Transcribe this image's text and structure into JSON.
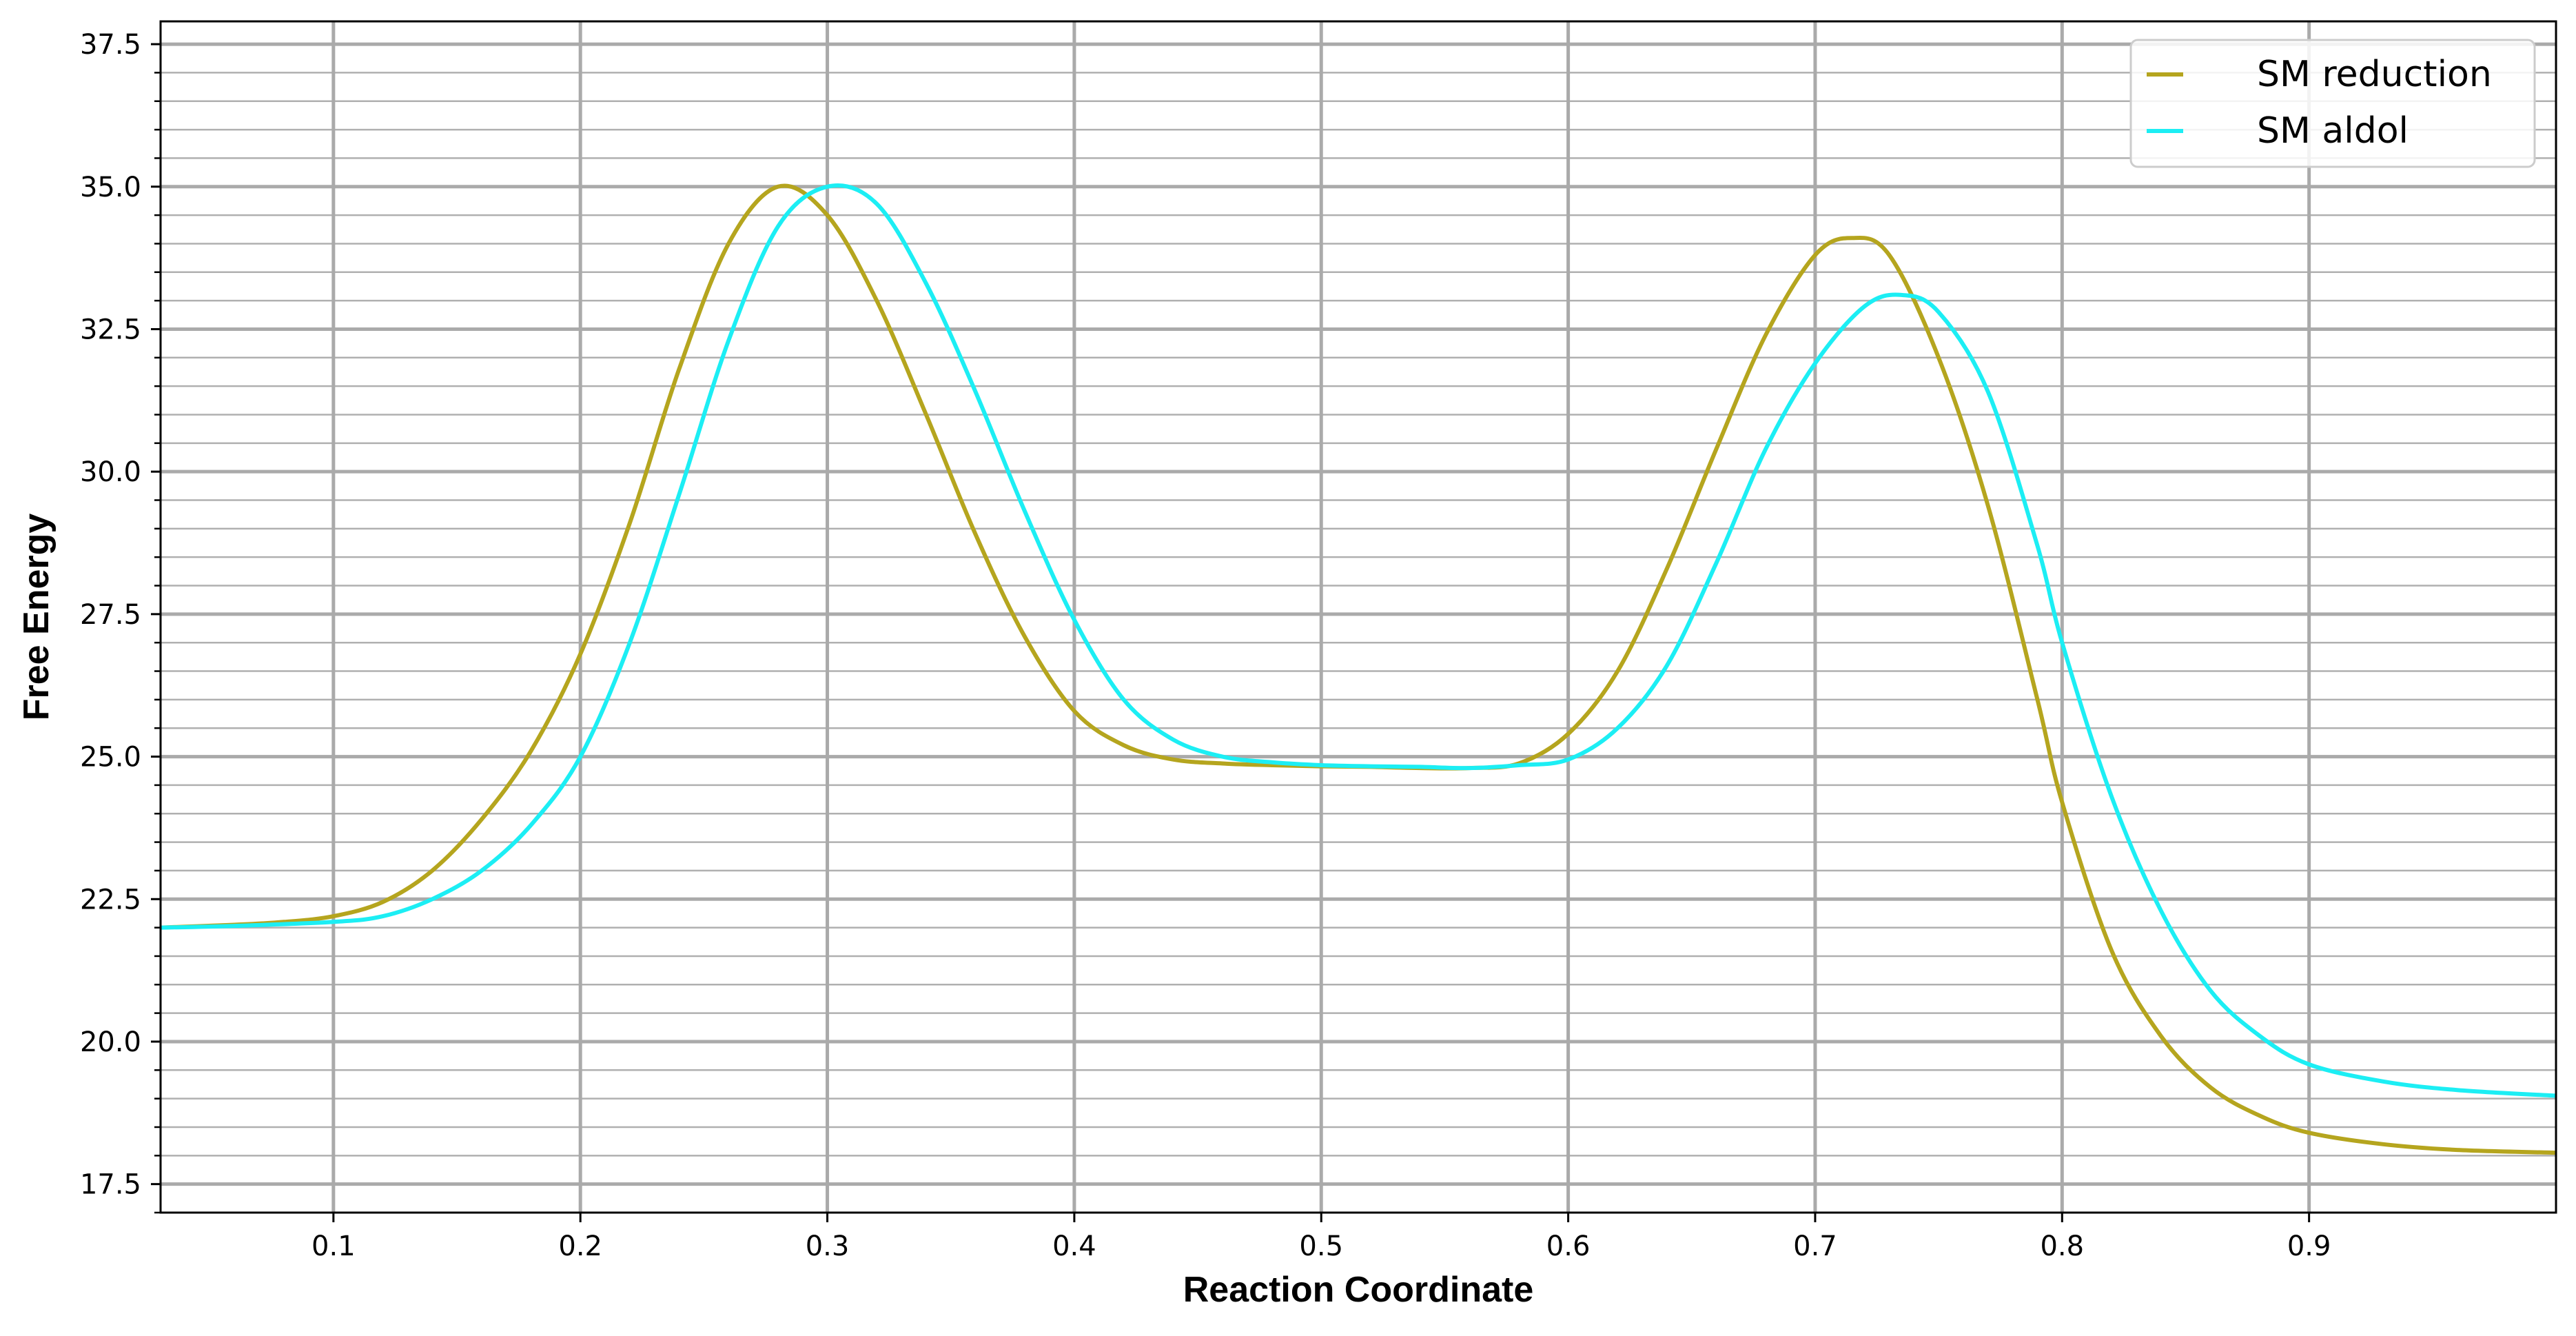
{
  "chart_data": {
    "type": "line",
    "title": "",
    "xlabel": "Reaction Coordinate",
    "ylabel": "Free Energy",
    "xlim": [
      0.03,
      1.0
    ],
    "ylim": [
      17.0,
      37.9
    ],
    "x_ticks": [
      0.1,
      0.2,
      0.3,
      0.4,
      0.5,
      0.6,
      0.7,
      0.8,
      0.9
    ],
    "x_tick_labels": [
      "0.1",
      "0.2",
      "0.3",
      "0.4",
      "0.5",
      "0.6",
      "0.7",
      "0.8",
      "0.9"
    ],
    "y_ticks": [
      17.5,
      20.0,
      22.5,
      25.0,
      27.5,
      30.0,
      32.5,
      35.0,
      37.5
    ],
    "y_tick_labels": [
      "17.5",
      "20.0",
      "22.5",
      "25.0",
      "27.5",
      "30.0",
      "32.5",
      "35.0",
      "37.5"
    ],
    "y_minor_step": 0.5,
    "grid": true,
    "legend_position": "top-right",
    "series": [
      {
        "name": "SM reduction",
        "color": "#b5a51e",
        "x": [
          0.03,
          0.06,
          0.08,
          0.1,
          0.12,
          0.14,
          0.16,
          0.18,
          0.2,
          0.22,
          0.24,
          0.26,
          0.28,
          0.3,
          0.32,
          0.34,
          0.36,
          0.38,
          0.4,
          0.42,
          0.44,
          0.46,
          0.48,
          0.5,
          0.52,
          0.54,
          0.56,
          0.58,
          0.6,
          0.62,
          0.64,
          0.66,
          0.68,
          0.7,
          0.715,
          0.73,
          0.75,
          0.77,
          0.79,
          0.8,
          0.82,
          0.84,
          0.86,
          0.88,
          0.9,
          0.93,
          0.96,
          1.0
        ],
        "y": [
          22.0,
          22.05,
          22.1,
          22.2,
          22.45,
          23.0,
          23.9,
          25.1,
          26.8,
          29.1,
          31.8,
          34.0,
          35.0,
          34.5,
          33.0,
          31.0,
          28.9,
          27.1,
          25.8,
          25.2,
          24.95,
          24.88,
          24.85,
          24.83,
          24.82,
          24.8,
          24.8,
          24.88,
          25.4,
          26.5,
          28.3,
          30.4,
          32.4,
          33.8,
          34.1,
          33.8,
          32.0,
          29.4,
          26.0,
          24.2,
          21.6,
          20.1,
          19.2,
          18.7,
          18.4,
          18.2,
          18.1,
          18.05
        ]
      },
      {
        "name": "SM aldol",
        "color": "#1ceef4",
        "x": [
          0.03,
          0.06,
          0.1,
          0.12,
          0.14,
          0.16,
          0.18,
          0.2,
          0.22,
          0.24,
          0.26,
          0.28,
          0.3,
          0.32,
          0.34,
          0.36,
          0.38,
          0.4,
          0.42,
          0.44,
          0.46,
          0.48,
          0.5,
          0.52,
          0.54,
          0.56,
          0.58,
          0.6,
          0.62,
          0.64,
          0.66,
          0.68,
          0.7,
          0.72,
          0.735,
          0.75,
          0.77,
          0.79,
          0.8,
          0.82,
          0.84,
          0.86,
          0.88,
          0.9,
          0.93,
          0.96,
          1.0
        ],
        "y": [
          22.0,
          22.03,
          22.1,
          22.2,
          22.5,
          23.0,
          23.8,
          25.0,
          27.0,
          29.6,
          32.3,
          34.3,
          35.0,
          34.7,
          33.3,
          31.4,
          29.3,
          27.4,
          26.0,
          25.3,
          25.0,
          24.9,
          24.85,
          24.83,
          24.82,
          24.8,
          24.85,
          24.95,
          25.5,
          26.6,
          28.4,
          30.4,
          31.9,
          32.9,
          33.1,
          32.8,
          31.4,
          28.7,
          27.0,
          24.3,
          22.3,
          20.9,
          20.1,
          19.6,
          19.3,
          19.15,
          19.05
        ]
      }
    ]
  }
}
